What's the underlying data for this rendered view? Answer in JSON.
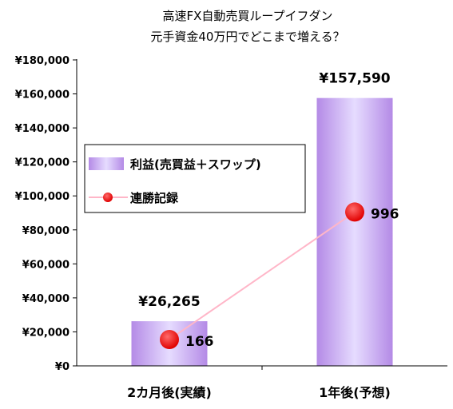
{
  "chart_data": {
    "type": "bar",
    "title_lines": [
      "高速FX自動売買ループイフダン",
      "元手資金40万円でどこまで増える？"
    ],
    "categories": [
      "2カ月後(実績)",
      "1年後(予想)"
    ],
    "ylim": [
      0,
      180000
    ],
    "yticks": [
      0,
      20000,
      40000,
      60000,
      80000,
      100000,
      120000,
      140000,
      160000,
      180000
    ],
    "ytick_labels": [
      "¥0",
      "¥20,000",
      "¥40,000",
      "¥60,000",
      "¥80,000",
      "¥100,000",
      "¥120,000",
      "¥140,000",
      "¥160,000",
      "¥180,000"
    ],
    "grid": false,
    "legend": "left-middle",
    "series": [
      {
        "name": "利益(売買益＋スワップ)",
        "type": "bar",
        "values": [
          26265,
          157590
        ],
        "value_labels": [
          "¥26,265",
          "¥157,590"
        ],
        "color": "#c4a8f0"
      },
      {
        "name": "連勝記録",
        "type": "line",
        "values": [
          166,
          996
        ],
        "value_labels": [
          "166",
          "996"
        ],
        "color": "#ff0000",
        "line_color": "#ffb6c8",
        "plotted_y": [
          15500,
          90500
        ]
      }
    ]
  }
}
